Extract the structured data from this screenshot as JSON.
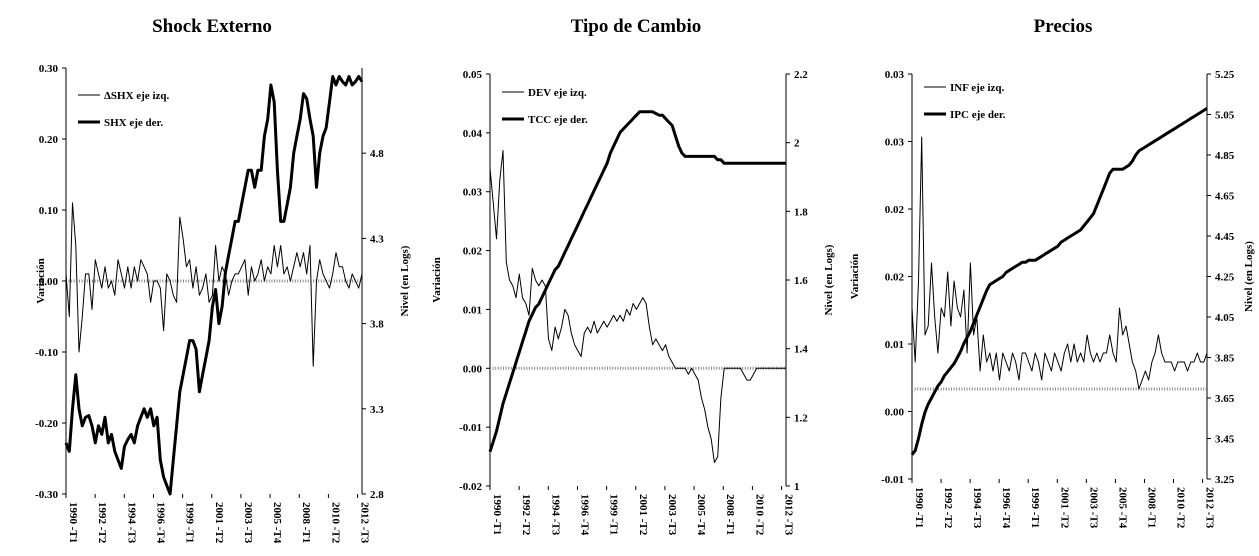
{
  "panels": [
    {
      "title": "Shock Externo",
      "left_axis": {
        "label": "Variación",
        "min": -0.3,
        "max": 0.3,
        "ticks": [
          "-0.30",
          "-0.20",
          "-0.10",
          "0.00",
          "0.10",
          "0.20",
          "0.30"
        ]
      },
      "right_axis": {
        "label": "Nivel (en Logs)",
        "min": 2.8,
        "max": 5.3,
        "ticks": [
          "2.8",
          "3.3",
          "3.8",
          "4.3",
          "4.8"
        ]
      },
      "x_ticks": [
        "1990 -T1",
        "1992 -T2",
        "1994 -T3",
        "1996 -T4",
        "1999 -T1",
        "2001 -T2",
        "2003 -T3",
        "2005 -T4",
        "2008 -T1",
        "2010 -T2",
        "2012 -T3"
      ],
      "legend": [
        {
          "label": "ΔSHX eje izq.",
          "weight": "thin"
        },
        {
          "label": "SHX  eje der.",
          "weight": "thick"
        }
      ]
    },
    {
      "title": "Tipo de Cambio",
      "left_axis": {
        "label": "Variación",
        "min": -0.02,
        "max": 0.05,
        "ticks": [
          "-0.02",
          "-0.01",
          "0.00",
          "0.01",
          "0.02",
          "0.03",
          "0.04",
          "0.05"
        ]
      },
      "right_axis": {
        "label": "Nivel (en Logs)",
        "min": 1.0,
        "max": 2.2,
        "ticks": [
          "1",
          "1.2",
          "1.4",
          "1.6",
          "1.8",
          "2",
          "2.2"
        ]
      },
      "x_ticks": [
        "1990 -T1",
        "1992 -T2",
        "1994 -T3",
        "1996 -T4",
        "1999 -T1",
        "2001 -T2",
        "2003 -T3",
        "2005 -T4",
        "2008 -T1",
        "2010 -T2",
        "2012 -T3"
      ],
      "legend": [
        {
          "label": "DEV eje izq.",
          "weight": "thin"
        },
        {
          "label": "TCC  eje der.",
          "weight": "thick"
        }
      ]
    },
    {
      "title": "Precios",
      "left_axis": {
        "label": "Variación",
        "min": -0.01,
        "max": 0.035,
        "ticks": [
          "-0.01",
          "0.00",
          "0.01",
          "0.02",
          "0.02",
          "0.03",
          "0.03"
        ]
      },
      "right_axis": {
        "label": "Nivel (en Logs)",
        "min": 3.25,
        "max": 5.25,
        "ticks": [
          "3.25",
          "3.45",
          "3.65",
          "3.85",
          "4.05",
          "4.25",
          "4.45",
          "4.65",
          "4.85",
          "5.05",
          "5.25"
        ]
      },
      "x_ticks": [
        "1990 -T1",
        "1992 -T2",
        "1994 -T3",
        "1996 -T4",
        "1999 -T1",
        "2001 -T2",
        "2003 -T3",
        "2005 -T4",
        "2008 -T1",
        "2010 -T2",
        "2012 -T3"
      ],
      "legend": [
        {
          "label": "INF eje izq.",
          "weight": "thin"
        },
        {
          "label": "IPC  eje der.",
          "weight": "thick"
        }
      ]
    }
  ],
  "chart_data": [
    {
      "type": "line",
      "title": "Shock Externo",
      "ylabel": "Variación",
      "ylabel_right": "Nivel (en Logs)",
      "ylim": [
        -0.3,
        0.3
      ],
      "ylim_right": [
        2.8,
        5.3
      ],
      "x_start": "1990 -T1",
      "series": [
        {
          "name": "ΔSHX eje izq.",
          "axis": "left",
          "values": [
            0.01,
            -0.05,
            0.11,
            0.05,
            -0.1,
            -0.05,
            0.01,
            0.01,
            -0.04,
            0.03,
            0.01,
            -0.01,
            0.02,
            -0.01,
            0.0,
            -0.02,
            0.03,
            0.01,
            -0.01,
            0.02,
            -0.01,
            0.02,
            0.0,
            0.03,
            0.02,
            0.01,
            -0.03,
            0.0,
            0.0,
            -0.01,
            -0.07,
            0.01,
            0.0,
            -0.02,
            -0.03,
            0.09,
            0.06,
            0.02,
            0.03,
            -0.01,
            0.02,
            -0.02,
            -0.01,
            0.01,
            -0.03,
            -0.02,
            0.05,
            0.0,
            0.02,
            0.01,
            -0.02,
            0.0,
            0.01,
            0.01,
            0.02,
            0.03,
            -0.02,
            0.02,
            0.0,
            0.01,
            0.03,
            0.0,
            0.02,
            0.01,
            0.05,
            0.02,
            0.05,
            0.01,
            0.02,
            0.0,
            0.02,
            0.04,
            0.02,
            0.04,
            0.01,
            0.05,
            -0.12,
            0.0,
            0.03,
            0.01,
            0.0,
            -0.01,
            0.01,
            0.04,
            0.02,
            0.02,
            0.0,
            -0.01,
            0.01,
            0.0,
            -0.01,
            0.01
          ]
        },
        {
          "name": "SHX  eje der.",
          "axis": "right",
          "values": [
            3.1,
            3.05,
            3.3,
            3.5,
            3.3,
            3.2,
            3.25,
            3.26,
            3.2,
            3.1,
            3.2,
            3.15,
            3.25,
            3.1,
            3.15,
            3.05,
            3.0,
            2.95,
            3.08,
            3.12,
            3.15,
            3.1,
            3.2,
            3.25,
            3.3,
            3.25,
            3.3,
            3.2,
            3.25,
            3.0,
            2.9,
            2.85,
            2.8,
            3.0,
            3.2,
            3.4,
            3.5,
            3.6,
            3.7,
            3.7,
            3.65,
            3.4,
            3.5,
            3.6,
            3.7,
            3.9,
            4.0,
            3.8,
            3.9,
            4.1,
            4.2,
            4.3,
            4.4,
            4.4,
            4.5,
            4.6,
            4.7,
            4.7,
            4.6,
            4.7,
            4.7,
            4.9,
            5.0,
            5.2,
            5.1,
            4.7,
            4.4,
            4.4,
            4.5,
            4.6,
            4.8,
            4.9,
            5.0,
            5.15,
            5.12,
            5.0,
            4.9,
            4.6,
            4.8,
            4.9,
            4.95,
            5.1,
            5.25,
            5.2,
            5.25,
            5.22,
            5.2,
            5.25,
            5.2,
            5.22,
            5.25,
            5.22
          ]
        }
      ]
    },
    {
      "type": "line",
      "title": "Tipo de Cambio",
      "ylabel": "Variación",
      "ylabel_right": "Nivel (en Logs)",
      "ylim": [
        -0.02,
        0.05
      ],
      "ylim_right": [
        1.0,
        2.2
      ],
      "x_start": "1990 -T1",
      "series": [
        {
          "name": "DEV eje izq.",
          "axis": "left",
          "values": [
            0.034,
            0.028,
            0.022,
            0.032,
            0.037,
            0.018,
            0.015,
            0.014,
            0.012,
            0.016,
            0.012,
            0.011,
            0.009,
            0.017,
            0.015,
            0.014,
            0.015,
            0.014,
            0.005,
            0.003,
            0.007,
            0.005,
            0.007,
            0.01,
            0.009,
            0.006,
            0.004,
            0.003,
            0.002,
            0.006,
            0.007,
            0.006,
            0.008,
            0.006,
            0.007,
            0.008,
            0.007,
            0.008,
            0.009,
            0.008,
            0.009,
            0.008,
            0.01,
            0.009,
            0.011,
            0.01,
            0.011,
            0.012,
            0.011,
            0.007,
            0.004,
            0.005,
            0.004,
            0.003,
            0.004,
            0.002,
            0.001,
            0.0,
            0.0,
            0.0,
            0.0,
            -0.001,
            0.0,
            -0.001,
            -0.002,
            -0.005,
            -0.007,
            -0.01,
            -0.012,
            -0.016,
            -0.015,
            -0.005,
            0.0,
            0.0,
            0.0,
            0.0,
            0.0,
            0.0,
            -0.001,
            -0.002,
            -0.002,
            -0.001,
            0.0,
            0.0,
            0.0,
            0.0,
            0.0,
            0.0,
            0.0,
            0.0,
            0.0,
            0.0
          ]
        },
        {
          "name": "TCC  eje der.",
          "axis": "right",
          "values": [
            1.1,
            1.13,
            1.16,
            1.2,
            1.24,
            1.27,
            1.3,
            1.33,
            1.36,
            1.39,
            1.42,
            1.45,
            1.48,
            1.5,
            1.52,
            1.53,
            1.55,
            1.57,
            1.59,
            1.61,
            1.63,
            1.64,
            1.66,
            1.68,
            1.7,
            1.72,
            1.74,
            1.76,
            1.78,
            1.8,
            1.82,
            1.84,
            1.86,
            1.88,
            1.9,
            1.92,
            1.94,
            1.97,
            1.99,
            2.01,
            2.03,
            2.04,
            2.05,
            2.06,
            2.07,
            2.08,
            2.09,
            2.09,
            2.09,
            2.09,
            2.09,
            2.085,
            2.08,
            2.08,
            2.07,
            2.06,
            2.05,
            2.02,
            1.99,
            1.97,
            1.96,
            1.96,
            1.96,
            1.96,
            1.96,
            1.96,
            1.96,
            1.96,
            1.96,
            1.96,
            1.95,
            1.95,
            1.94,
            1.94,
            1.94,
            1.94,
            1.94,
            1.94,
            1.94,
            1.94,
            1.94,
            1.94,
            1.94,
            1.94,
            1.94,
            1.94,
            1.94,
            1.94,
            1.94,
            1.94,
            1.94,
            1.94
          ]
        }
      ]
    },
    {
      "type": "line",
      "title": "Precios",
      "ylabel": "Variación",
      "ylabel_right": "Nivel (en Logs)",
      "ylim": [
        -0.01,
        0.035
      ],
      "ylim_right": [
        3.25,
        5.25
      ],
      "x_start": "1990 -T1",
      "series": [
        {
          "name": "INF eje izq.",
          "axis": "left",
          "values": [
            0.009,
            0.003,
            0.012,
            0.028,
            0.006,
            0.007,
            0.014,
            0.008,
            0.004,
            0.009,
            0.008,
            0.013,
            0.007,
            0.012,
            0.009,
            0.008,
            0.011,
            0.004,
            0.014,
            0.006,
            0.008,
            0.002,
            0.006,
            0.003,
            0.004,
            0.002,
            0.004,
            0.001,
            0.004,
            0.003,
            0.002,
            0.004,
            0.003,
            0.001,
            0.004,
            0.004,
            0.003,
            0.002,
            0.004,
            0.003,
            0.001,
            0.004,
            0.003,
            0.002,
            0.004,
            0.003,
            0.002,
            0.004,
            0.005,
            0.003,
            0.005,
            0.003,
            0.004,
            0.003,
            0.006,
            0.004,
            0.003,
            0.004,
            0.003,
            0.004,
            0.004,
            0.006,
            0.004,
            0.003,
            0.009,
            0.006,
            0.007,
            0.005,
            0.003,
            0.002,
            0.0,
            0.001,
            0.002,
            0.001,
            0.003,
            0.004,
            0.006,
            0.004,
            0.003,
            0.003,
            0.003,
            0.002,
            0.003,
            0.003,
            0.003,
            0.002,
            0.003,
            0.003,
            0.004,
            0.003,
            0.003,
            0.004
          ]
        },
        {
          "name": "IPC  eje der.",
          "axis": "right",
          "values": [
            3.37,
            3.39,
            3.45,
            3.52,
            3.58,
            3.62,
            3.65,
            3.68,
            3.71,
            3.73,
            3.76,
            3.78,
            3.8,
            3.82,
            3.85,
            3.88,
            3.92,
            3.95,
            3.98,
            4.02,
            4.06,
            4.1,
            4.14,
            4.18,
            4.21,
            4.22,
            4.23,
            4.24,
            4.25,
            4.27,
            4.28,
            4.29,
            4.3,
            4.31,
            4.32,
            4.32,
            4.33,
            4.33,
            4.33,
            4.34,
            4.35,
            4.36,
            4.37,
            4.38,
            4.39,
            4.4,
            4.42,
            4.43,
            4.44,
            4.45,
            4.46,
            4.47,
            4.48,
            4.5,
            4.52,
            4.54,
            4.56,
            4.6,
            4.64,
            4.68,
            4.72,
            4.76,
            4.78,
            4.78,
            4.78,
            4.78,
            4.79,
            4.8,
            4.82,
            4.85,
            4.87,
            4.88,
            4.89,
            4.9,
            4.91,
            4.92,
            4.93,
            4.94,
            4.95,
            4.96,
            4.97,
            4.98,
            4.99,
            5.0,
            5.01,
            5.02,
            5.03,
            5.04,
            5.05,
            5.06,
            5.07,
            5.08
          ]
        }
      ]
    }
  ]
}
